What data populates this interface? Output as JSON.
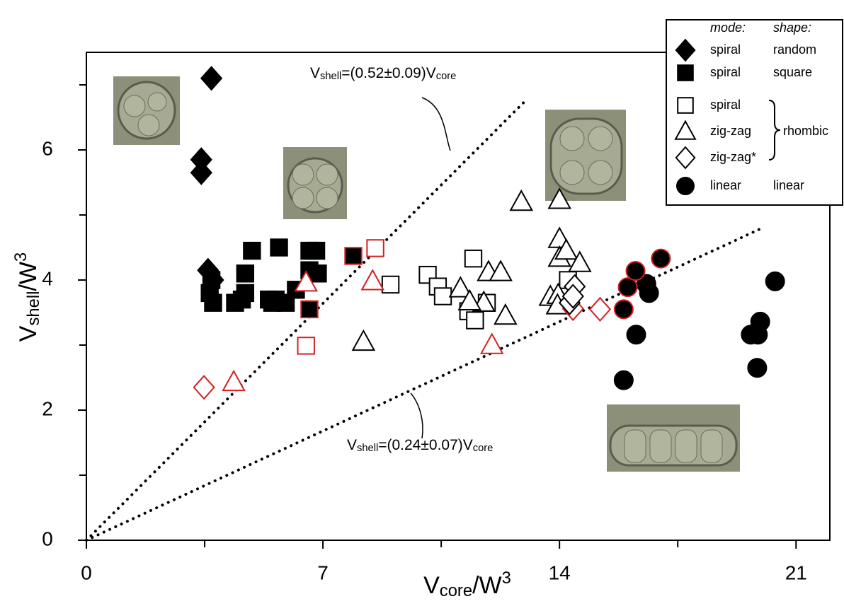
{
  "chart_data": {
    "type": "scatter",
    "xlim": [
      0,
      22
    ],
    "ylim": [
      0,
      7.5
    ],
    "xticks": [
      0,
      7,
      14,
      21
    ],
    "yticks": [
      0,
      2,
      4,
      6
    ],
    "xminorticks": [
      3.5,
      10.5,
      17.5
    ],
    "yminorticks": [
      1,
      3,
      5,
      7
    ],
    "xlabel": {
      "text": "V",
      "sub": "core",
      "after": "/W",
      "sup": "3"
    },
    "ylabel": {
      "text": "V",
      "sub": "shell",
      "after": "/W",
      "sup": "3"
    },
    "series": [
      {
        "marker": "diamond",
        "fill": "#000",
        "color": "#000",
        "x": [
          3.7,
          3.4,
          3.4,
          3.6,
          3.75
        ],
        "values": [
          7.1,
          5.85,
          5.65,
          4.15,
          4.0
        ]
      },
      {
        "marker": "square",
        "fill": "#000",
        "color": "#000",
        "x": [
          3.7,
          3.65,
          3.75,
          4.4,
          4.6,
          4.7,
          4.7,
          4.9,
          5.4,
          5.5,
          5.6,
          5.7,
          5.9,
          6.2,
          6.6,
          6.8,
          6.6,
          6.85
        ],
        "values": [
          4.0,
          3.8,
          3.65,
          3.65,
          3.7,
          3.8,
          4.1,
          4.45,
          3.7,
          3.65,
          3.7,
          4.5,
          3.65,
          3.85,
          4.45,
          4.45,
          4.15,
          4.1
        ]
      },
      {
        "marker": "square",
        "fill": "#000",
        "color": "#d42020",
        "x": [
          7.9,
          6.6
        ],
        "values": [
          4.37,
          3.55
        ]
      },
      {
        "marker": "square",
        "fill": "#fff",
        "color": "#000",
        "x": [
          9.0,
          10.1,
          10.4,
          10.55,
          11.3,
          11.5,
          11.45,
          11.85,
          14.25
        ],
        "values": [
          3.93,
          4.08,
          3.9,
          3.75,
          3.52,
          3.38,
          4.33,
          3.65,
          4.0
        ]
      },
      {
        "marker": "square",
        "fill": "#fff",
        "color": "#d42020",
        "x": [
          8.55,
          6.5
        ],
        "values": [
          4.49,
          2.99
        ]
      },
      {
        "marker": "triangle",
        "fill": "#fff",
        "color": "#000",
        "x": [
          8.2,
          12.87,
          14.0,
          11.07,
          11.9,
          12.26,
          12.4,
          11.76,
          11.34,
          13.73,
          13.96,
          14.0,
          14.0,
          14.2,
          14.6,
          13.94
        ],
        "values": [
          3.05,
          5.2,
          5.23,
          3.87,
          4.12,
          4.12,
          3.45,
          3.65,
          3.67,
          3.74,
          3.77,
          4.63,
          4.34,
          4.45,
          4.26,
          3.61
        ]
      },
      {
        "marker": "triangle",
        "fill": "#fff",
        "color": "#d42020",
        "x": [
          6.5,
          8.47,
          4.36,
          12.0
        ],
        "values": [
          3.96,
          3.98,
          2.43,
          3.0
        ]
      },
      {
        "marker": "diamond",
        "fill": "#fff",
        "color": "#d42020",
        "x": [
          3.48,
          15.2,
          14.4
        ],
        "values": [
          2.35,
          3.55,
          3.56
        ]
      },
      {
        "marker": "diamond",
        "fill": "#fff",
        "color": "#000",
        "x": [
          14.3,
          14.45,
          14.4
        ],
        "values": [
          3.65,
          3.9,
          3.75
        ]
      },
      {
        "marker": "circle",
        "fill": "#000",
        "color": "#000",
        "x": [
          15.9,
          16.27,
          16.57,
          16.65,
          19.66,
          19.94,
          19.85,
          19.87,
          20.38
        ],
        "values": [
          2.46,
          3.16,
          3.94,
          3.8,
          3.16,
          3.36,
          2.65,
          3.16,
          3.98
        ]
      },
      {
        "marker": "circle",
        "fill": "#000",
        "color": "#d42020",
        "x": [
          15.9,
          16.02,
          16.25,
          17.0
        ],
        "values": [
          3.55,
          3.89,
          4.14,
          4.33
        ]
      }
    ],
    "fits": [
      {
        "x": [
          0,
          13
        ],
        "values": [
          0,
          6.76
        ],
        "label": {
          "text": "V",
          "sub": "shell",
          "after": "=(0.52±0.09)V",
          "sub2": "core"
        }
      },
      {
        "x": [
          0,
          20
        ],
        "values": [
          0,
          4.8
        ],
        "label": {
          "text": "V",
          "sub": "shell",
          "after": "=(0.24±0.07)V",
          "sub2": "core"
        }
      }
    ],
    "legend": {
      "header": [
        "mode:",
        "shape:"
      ],
      "rows": [
        {
          "marker": "diamond",
          "fill": "#000",
          "mode": "spiral",
          "shape": "random"
        },
        {
          "marker": "square",
          "fill": "#000",
          "mode": "spiral",
          "shape": "square"
        },
        {
          "marker": "square",
          "fill": "#fff",
          "mode": "spiral"
        },
        {
          "marker": "triangle",
          "fill": "#fff",
          "mode": "zig-zag"
        },
        {
          "marker": "diamond",
          "fill": "#fff",
          "mode": "zig-zag*"
        },
        {
          "marker": "circle",
          "fill": "#000",
          "mode": "linear",
          "shape": "linear"
        }
      ],
      "brace_label": "rhombic"
    }
  }
}
